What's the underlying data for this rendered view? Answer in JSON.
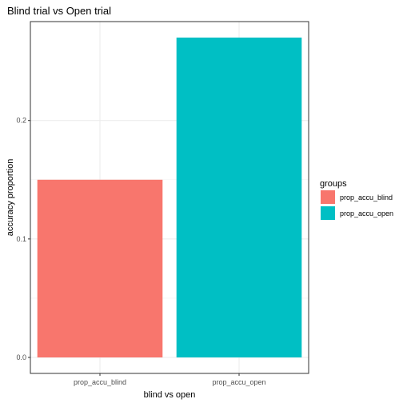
{
  "chart_data": {
    "type": "bar",
    "title": "Blind trial vs Open trial",
    "xlabel": "blind vs open",
    "ylabel": "accuracy proportion",
    "categories": [
      "prop_accu_blind",
      "prop_accu_open"
    ],
    "values": [
      0.15,
      0.27
    ],
    "colors": [
      "#F8766D",
      "#00BFC4"
    ],
    "ylim": [
      -0.0135,
      0.2835
    ],
    "yticks": [
      0.0,
      0.1,
      0.2
    ],
    "ytick_labels": [
      "0.0",
      "0.1",
      "0.2"
    ],
    "grid": true,
    "legend": {
      "title": "groups",
      "position": "right",
      "entries": [
        "prop_accu_blind",
        "prop_accu_open"
      ]
    }
  }
}
